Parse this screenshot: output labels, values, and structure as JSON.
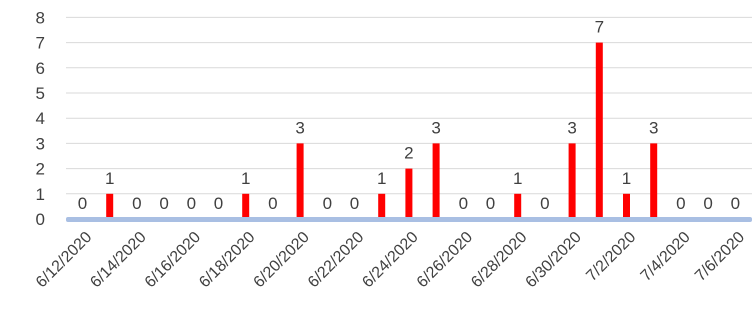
{
  "chart_data": {
    "type": "bar",
    "title": "",
    "xlabel": "",
    "ylabel": "",
    "ylim": [
      0,
      8
    ],
    "yticks": [
      0,
      1,
      2,
      3,
      4,
      5,
      6,
      7,
      8
    ],
    "grid": true,
    "legend": "none",
    "bar_color": "#ff0000",
    "grid_color": "#d9d9d9",
    "x_tick_labels": [
      "6/12/2020",
      "6/14/2020",
      "6/16/2020",
      "6/18/2020",
      "6/20/2020",
      "6/22/2020",
      "6/24/2020",
      "6/26/2020",
      "6/28/2020",
      "6/30/2020",
      "7/2/2020",
      "7/4/2020",
      "7/6/2020"
    ],
    "categories": [
      "6/12/2020",
      "6/13/2020",
      "6/14/2020",
      "6/15/2020",
      "6/16/2020",
      "6/17/2020",
      "6/18/2020",
      "6/19/2020",
      "6/20/2020",
      "6/21/2020",
      "6/22/2020",
      "6/23/2020",
      "6/24/2020",
      "6/25/2020",
      "6/26/2020",
      "6/27/2020",
      "6/28/2020",
      "6/29/2020",
      "6/30/2020",
      "7/1/2020",
      "7/2/2020",
      "7/3/2020",
      "7/4/2020",
      "7/5/2020",
      "7/6/2020"
    ],
    "values": [
      0,
      1,
      0,
      0,
      0,
      0,
      1,
      0,
      3,
      0,
      0,
      1,
      2,
      3,
      0,
      0,
      1,
      0,
      3,
      7,
      1,
      3,
      0,
      0,
      0
    ]
  }
}
